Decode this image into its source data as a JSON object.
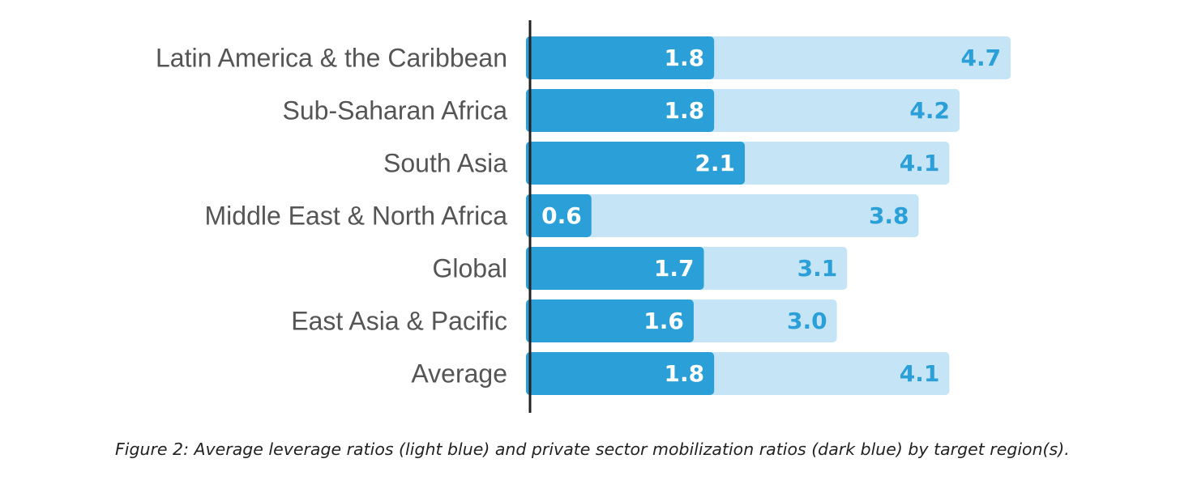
{
  "chart_data": {
    "type": "bar",
    "orientation": "horizontal",
    "categories": [
      "Latin America & the Caribbean",
      "Sub-Saharan Africa",
      "South Asia",
      "Middle East & North Africa",
      "Global",
      "East Asia & Pacific",
      "Average"
    ],
    "series": [
      {
        "values": [
          4.7,
          4.2,
          4.1,
          3.8,
          3.1,
          3.0,
          4.1
        ],
        "color": "#C5E4F5"
      },
      {
        "values": [
          1.8,
          1.8,
          2.1,
          0.6,
          1.7,
          1.6,
          1.8
        ],
        "color": "#2A9FD8"
      }
    ],
    "value_label_color_light": "#2A9FD8",
    "value_label_color_dark": "#FFFFFF",
    "axis_color": "#222222",
    "grid": false,
    "legend": "none",
    "xlim": [
      0,
      4.7
    ]
  },
  "caption": "Figure 2: Average leverage ratios (light blue) and private sector mobilization ratios (dark blue) by target region(s)."
}
